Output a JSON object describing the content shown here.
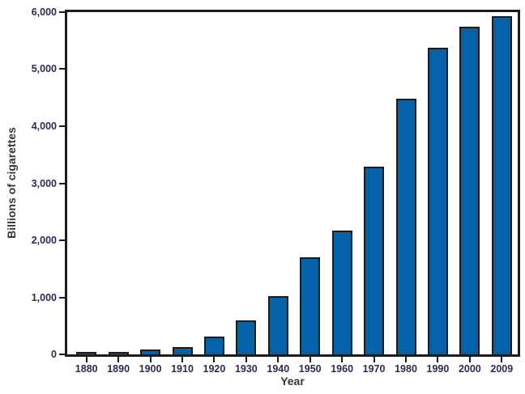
{
  "chart_data": {
    "type": "bar",
    "title": "",
    "xlabel": "Year",
    "ylabel": "Billions of cigarettes",
    "categories": [
      "1880",
      "1890",
      "1900",
      "1910",
      "1920",
      "1930",
      "1940",
      "1950",
      "1960",
      "1970",
      "1980",
      "1990",
      "2000",
      "2009"
    ],
    "values": [
      10,
      20,
      50,
      100,
      280,
      570,
      990,
      1680,
      2140,
      3260,
      4450,
      5350,
      5720,
      5900
    ],
    "ylim": [
      0,
      6000
    ],
    "yticks": [
      0,
      1000,
      2000,
      3000,
      4000,
      5000,
      6000
    ],
    "ytick_labels": [
      "0",
      "1,000",
      "2,000",
      "3,000",
      "4,000",
      "5,000",
      "6,000"
    ],
    "legend": null,
    "grid": false,
    "frame": true,
    "bar_fill_color": "#0562A8",
    "bar_outline_color": "#1c1c1c",
    "axis_color": "#1c1c1c",
    "tick_label_color": "#2b2b4f",
    "axis_title_color": "#35353a",
    "background_color": "#ffffff"
  }
}
